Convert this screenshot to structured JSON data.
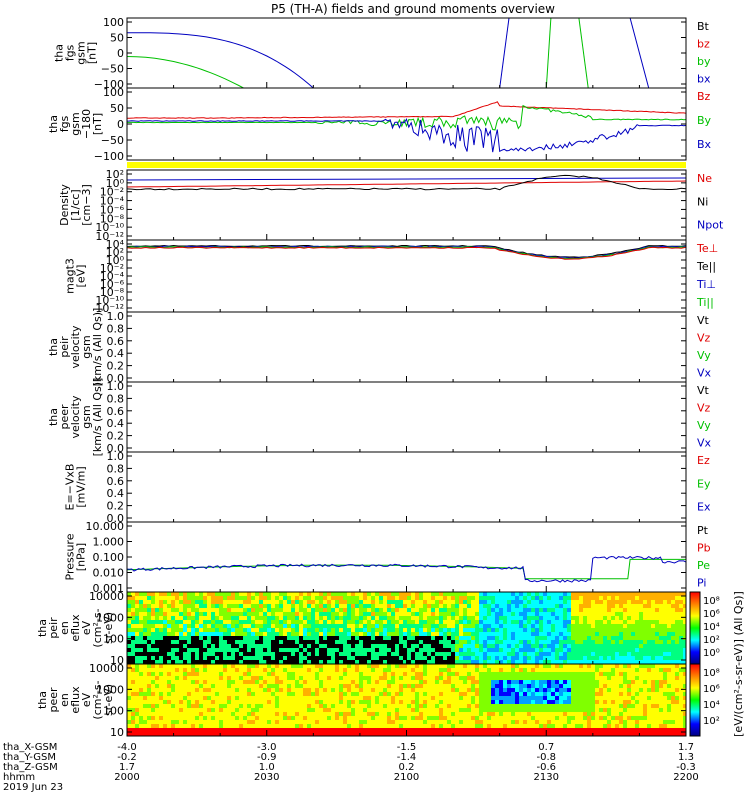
{
  "title": "P5 (TH-A) fields and ground moments overview",
  "colors": {
    "black": "#000000",
    "red": "#e00000",
    "green": "#00c000",
    "blue": "#0000c0",
    "yellow": "#ffff00"
  },
  "panels": [
    {
      "ylabel": [
        "tha",
        "fgs",
        "gsm",
        "[nT]"
      ],
      "ticks": [
        "100",
        "50",
        "0",
        "−50",
        "−100"
      ],
      "legend": [
        [
          "Bt",
          "black"
        ],
        [
          "bz",
          "red"
        ],
        [
          "by",
          "green"
        ],
        [
          "bx",
          "blue"
        ]
      ]
    },
    {
      "ylabel": [
        "tha",
        "fgs",
        "gsm",
        "−180",
        "[nT]"
      ],
      "ticks": [
        "100",
        "50",
        "0",
        "−50",
        "−100"
      ],
      "legend": [
        [
          "Bz",
          "red"
        ],
        [
          "By",
          "green"
        ],
        [
          "Bx",
          "blue"
        ]
      ]
    },
    {
      "ylabel": [
        "Density",
        "[1/cc]",
        "[cm−3]"
      ],
      "ticks": [
        "10²",
        "10⁰",
        "10⁻²",
        "10⁻⁴",
        "10⁻⁶",
        "10⁻⁸",
        "10⁻¹⁰",
        "10⁻¹²"
      ],
      "legend": [
        [
          "Ne",
          "red"
        ],
        [
          "Ni",
          "black"
        ],
        [
          "Npot",
          "blue"
        ]
      ]
    },
    {
      "ylabel": [
        "magt3",
        "[eV]"
      ],
      "ticks": [
        "10⁴",
        "10²",
        "10⁰",
        "10⁻²",
        "10⁻⁴",
        "10⁻⁶",
        "10⁻⁸",
        "10⁻¹⁰",
        "10⁻¹²"
      ],
      "legend": [
        [
          "Te⊥",
          "red"
        ],
        [
          "Te||",
          "black"
        ],
        [
          "Ti⊥",
          "blue"
        ],
        [
          "Ti||",
          "green"
        ]
      ]
    },
    {
      "ylabel": [
        "tha",
        "peir",
        "velocity",
        "gsm",
        "[km/s (All Qs)]"
      ],
      "ticks": [
        "1.0",
        "0.8",
        "0.6",
        "0.4",
        "0.2",
        "0.0"
      ],
      "legend": [
        [
          "Vt",
          "black"
        ],
        [
          "Vz",
          "red"
        ],
        [
          "Vy",
          "green"
        ],
        [
          "Vx",
          "blue"
        ]
      ]
    },
    {
      "ylabel": [
        "tha",
        "peer",
        "velocity",
        "gsm",
        "[km/s (All Qs)]"
      ],
      "ticks": [
        "1.0",
        "0.8",
        "0.6",
        "0.4",
        "0.2",
        "0.0"
      ],
      "legend": [
        [
          "Vt",
          "black"
        ],
        [
          "Vz",
          "red"
        ],
        [
          "Vy",
          "green"
        ],
        [
          "Vx",
          "blue"
        ]
      ]
    },
    {
      "ylabel": [
        "E=−VxB",
        "[mV/m]"
      ],
      "ticks": [
        "1.0",
        "0.8",
        "0.6",
        "0.4",
        "0.2",
        "0.0"
      ],
      "legend": [
        [
          "Ez",
          "red"
        ],
        [
          "Ey",
          "green"
        ],
        [
          "Ex",
          "blue"
        ]
      ]
    },
    {
      "ylabel": [
        "Pressure",
        "[nPa]"
      ],
      "ticks": [
        "10.000",
        "1.000",
        "0.100",
        "0.010",
        "0.001"
      ],
      "legend": [
        [
          "Pt",
          "black"
        ],
        [
          "Pb",
          "red"
        ],
        [
          "Pe",
          "green"
        ],
        [
          "Pi",
          "blue"
        ]
      ]
    },
    {
      "ylabel": [
        "tha",
        "peir",
        "en",
        "eflux",
        "eV",
        "(cm²-s-",
        "sr-eV)"
      ],
      "ticks": [
        "10000",
        "1000",
        "100",
        "10"
      ],
      "legend": []
    },
    {
      "ylabel": [
        "tha",
        "peer",
        "en",
        "eflux",
        "eV",
        "(cm²-s-",
        "sr-eV)"
      ],
      "ticks": [
        "10000",
        "1000",
        "100",
        "10"
      ],
      "legend": []
    }
  ],
  "colorbar": {
    "label": "[eV/(cm²-s-sr-eV)] (All Qs)]",
    "ticks_top": [
      "10⁸",
      "10⁶",
      "10⁴",
      "10²",
      "10⁰"
    ],
    "ticks_bottom": [
      "10⁸",
      "10⁶",
      "10⁴",
      "10²"
    ]
  },
  "xaxis": {
    "rows": [
      {
        "label": "tha_X-GSM",
        "values": [
          "-4.0",
          "-3.0",
          "-1.5",
          "0.7",
          "1.7"
        ]
      },
      {
        "label": "tha_Y-GSM",
        "values": [
          "-0.2",
          "-0.9",
          "-1.4",
          "-0.8",
          "1.3"
        ]
      },
      {
        "label": "tha_Z-GSM",
        "values": [
          "1.7",
          "1.0",
          "0.2",
          "-0.6",
          "-0.3"
        ]
      },
      {
        "label": "hhmm",
        "values": [
          "2000",
          "2030",
          "2100",
          "2130",
          "2200"
        ]
      }
    ],
    "date": "2019 Jun 23"
  },
  "chart_data": {
    "type": "line",
    "title": "P5 (TH-A) fields and ground moments overview",
    "x_range": [
      "2000",
      "2200"
    ],
    "x_tick_labels": [
      "2000",
      "2030",
      "2100",
      "2130",
      "2200"
    ],
    "series_by_panel": [
      {
        "panel": "fgs gsm",
        "ylim": [
          -100,
          100
        ],
        "series": [
          {
            "name": "bx",
            "time": [
              "2000",
              "2010",
              "2020",
              "2030",
              "2035",
              "2040"
            ],
            "values": [
              58,
              57,
              50,
              25,
              0,
              -100
            ]
          },
          {
            "name": "by",
            "time": [
              "2000",
              "2010",
              "2020",
              "2025"
            ],
            "values": [
              -10,
              -25,
              -60,
              -100
            ]
          },
          {
            "name": "bx (edge)",
            "time": [
              "2100",
              "2102",
              "2140",
              "2142"
            ],
            "values": [
              -100,
              100,
              100,
              -100
            ]
          }
        ]
      },
      {
        "panel": "fgs gsm -180",
        "ylim": [
          -120,
          120
        ],
        "series": [
          {
            "name": "Bz",
            "time": [
              "2000",
              "2040",
              "2100",
              "2110",
              "2140",
              "2200"
            ],
            "values": [
              18,
              20,
              30,
              60,
              45,
              30
            ]
          },
          {
            "name": "By",
            "time": [
              "2000",
              "2040",
              "2100",
              "2110",
              "2140",
              "2200"
            ],
            "values": [
              5,
              5,
              15,
              40,
              60,
              10
            ]
          },
          {
            "name": "Bx",
            "time": [
              "2000",
              "2040",
              "2100",
              "2110",
              "2130",
              "2200"
            ],
            "values": [
              10,
              10,
              -5,
              -80,
              -110,
              -5
            ]
          }
        ]
      },
      {
        "panel": "Density",
        "ylim": [
          "1e-12",
          "1e2"
        ],
        "series": [
          {
            "name": "Ne",
            "time": [
              "2000",
              "2200"
            ],
            "values": [
              0.5,
              3
            ]
          },
          {
            "name": "Ni",
            "time": [
              "2000",
              "2100",
              "2115",
              "2130",
              "2200"
            ],
            "values": [
              0.3,
              0.5,
              10,
              30,
              0.3
            ]
          }
        ]
      },
      {
        "panel": "Pressure",
        "ylim": [
          0.001,
          10
        ],
        "series": [
          {
            "name": "Pi",
            "time": [
              "2000",
              "2100",
              "2110",
              "2130",
              "2140",
              "2200"
            ],
            "values": [
              0.015,
              0.03,
              0.002,
              0.09,
              0.11,
              0.05
            ]
          },
          {
            "name": "Pe",
            "time": [
              "2000",
              "2100",
              "2120",
              "2140",
              "2200"
            ],
            "values": [
              0.015,
              0.03,
              0.004,
              0.08,
              0.06
            ]
          }
        ]
      }
    ]
  }
}
